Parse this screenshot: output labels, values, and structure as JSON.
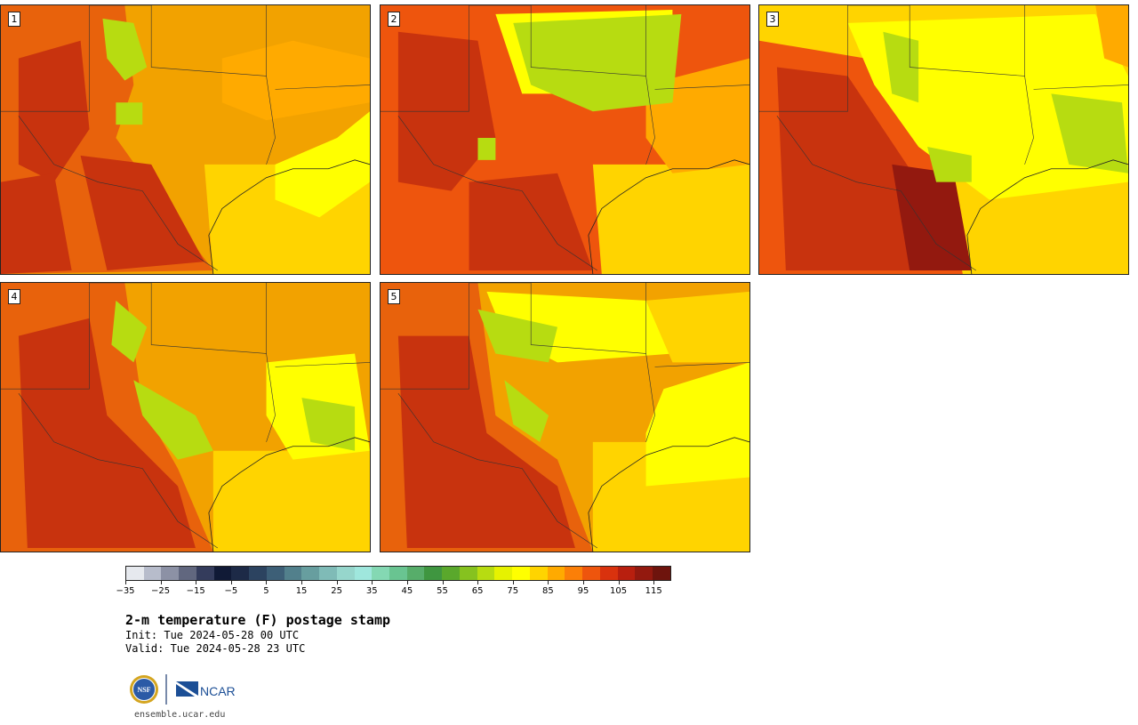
{
  "panels": [
    {
      "number": "1"
    },
    {
      "number": "2"
    },
    {
      "number": "3"
    },
    {
      "number": "4"
    },
    {
      "number": "5"
    }
  ],
  "colorbar": {
    "colors": [
      "#e6e9ee",
      "#b7bccb",
      "#8c91a5",
      "#61677f",
      "#343c5c",
      "#101a36",
      "#1d2a47",
      "#2c4360",
      "#3d5f77",
      "#52808c",
      "#679e9f",
      "#7fbbb7",
      "#96d6cc",
      "#9fe7dd",
      "#84d8b3",
      "#69c491",
      "#57ad6a",
      "#3f9640",
      "#5aa82c",
      "#86c21f",
      "#b7dc11",
      "#e6f200",
      "#ffff00",
      "#ffd400",
      "#ffaa00",
      "#fb7f08",
      "#ee550d",
      "#d9320e",
      "#b81f0f",
      "#93190f",
      "#6e140d"
    ],
    "tick_labels": [
      "−35",
      "−25",
      "−15",
      "−5",
      "5",
      "15",
      "25",
      "35",
      "45",
      "55",
      "65",
      "75",
      "85",
      "95",
      "105",
      "115"
    ]
  },
  "title": "2-m temperature (F) postage stamp",
  "init": "Init: Tue 2024-05-28 00 UTC",
  "valid": "Valid: Tue 2024-05-28 23 UTC",
  "logos": {
    "nsf": "NSF",
    "ncar": "NCAR"
  },
  "url": "ensemble.ucar.edu"
}
